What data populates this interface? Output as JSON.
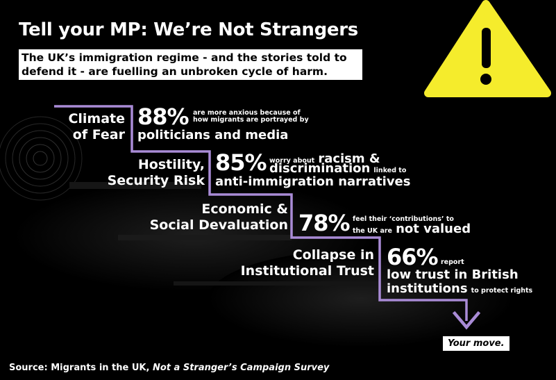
{
  "header": {
    "title": "Tell your MP: We’re Not Strangers",
    "subtitle": "The UK’s immigration regime - and the stories told to defend it - are fuelling an unbroken cycle of harm."
  },
  "colors": {
    "accent": "#a98bd6",
    "warning": "#ffe93a",
    "background": "#000000"
  },
  "icons": {
    "warning": "warning-triangle-icon",
    "arrow": "arrow-down-icon"
  },
  "stages": [
    {
      "label_line1": "Climate",
      "label_line2": "of Fear",
      "percent": "88%",
      "text_small1": "are more anxious because of",
      "text_small2": "how migrants are portrayed by",
      "text_main": "politicians and media"
    },
    {
      "label_line1": "Hostility,",
      "label_line2": "Security Risk",
      "percent": "85%",
      "text_small_a1": "worry about",
      "text_big1": "racism &",
      "text_big2": "discrimination",
      "text_small_b": "linked to",
      "text_main": "anti-immigration narratives"
    },
    {
      "label_line1": "Economic &",
      "label_line2": "Social Devaluation",
      "percent": "78%",
      "text_small1": "feel their ‘contributions’ to",
      "text_small2": "the UK are",
      "text_main": "not valued"
    },
    {
      "label_line1": "Collapse in",
      "label_line2": "Institutional Trust",
      "percent": "66%",
      "text_small1": "report",
      "text_main1": "low trust in British",
      "text_main2": "institutions",
      "text_small2": "to protect rights"
    }
  ],
  "call_to_action": "Your move.",
  "source": {
    "prefix": "Source: Migrants in the UK,",
    "title": "Not a Stranger’s Campaign Survey"
  }
}
